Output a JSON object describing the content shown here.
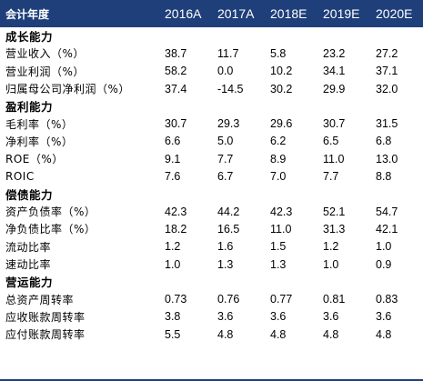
{
  "header": {
    "label": "会计年度",
    "years": [
      "2016A",
      "2017A",
      "2018E",
      "2019E",
      "2020E"
    ]
  },
  "rows": [
    {
      "type": "section",
      "label": "成长能力",
      "values": []
    },
    {
      "type": "data",
      "label": "营业收入（%）",
      "values": [
        "38.7",
        "11.7",
        "5.8",
        "23.2",
        "27.2"
      ]
    },
    {
      "type": "data",
      "label": "营业利润（%）",
      "values": [
        "58.2",
        "0.0",
        "10.2",
        "34.1",
        "37.1"
      ]
    },
    {
      "type": "data",
      "label": "归属母公司净利润（%）",
      "values": [
        "37.4",
        "-14.5",
        "30.2",
        "29.9",
        "32.0"
      ]
    },
    {
      "type": "section",
      "label": "盈利能力",
      "values": []
    },
    {
      "type": "data",
      "label": "毛利率（%）",
      "values": [
        "30.7",
        "29.3",
        "29.6",
        "30.7",
        "31.5"
      ]
    },
    {
      "type": "data",
      "label": "净利率（%）",
      "values": [
        "6.6",
        "5.0",
        "6.2",
        "6.5",
        "6.8"
      ]
    },
    {
      "type": "data",
      "label": "ROE（%）",
      "values": [
        "9.1",
        "7.7",
        "8.9",
        "11.0",
        "13.0"
      ]
    },
    {
      "type": "data",
      "label": "ROIC",
      "values": [
        "7.6",
        "6.7",
        "7.0",
        "7.7",
        "8.8"
      ]
    },
    {
      "type": "section",
      "label": "偿债能力",
      "values": []
    },
    {
      "type": "data",
      "label": "资产负债率（%）",
      "values": [
        "42.3",
        "44.2",
        "42.3",
        "52.1",
        "54.7"
      ]
    },
    {
      "type": "data",
      "label": "净负债比率（%）",
      "values": [
        "18.2",
        "16.5",
        "11.0",
        "31.3",
        "42.1"
      ]
    },
    {
      "type": "data",
      "label": "流动比率",
      "values": [
        "1.2",
        "1.6",
        "1.5",
        "1.2",
        "1.0"
      ]
    },
    {
      "type": "data",
      "label": "速动比率",
      "values": [
        "1.0",
        "1.3",
        "1.3",
        "1.0",
        "0.9"
      ]
    },
    {
      "type": "section",
      "label": "营运能力",
      "values": []
    },
    {
      "type": "data",
      "label": "总资产周转率",
      "values": [
        "0.73",
        "0.76",
        "0.77",
        "0.81",
        "0.83"
      ]
    },
    {
      "type": "data",
      "label": "应收账款周转率",
      "values": [
        "3.8",
        "3.6",
        "3.6",
        "3.6",
        "3.6"
      ]
    },
    {
      "type": "data",
      "label": "应付账款周转率",
      "values": [
        "5.5",
        "4.8",
        "4.8",
        "4.8",
        "4.8"
      ]
    }
  ],
  "colors": {
    "header_bg": "#1f3f7a",
    "header_text": "#ffffff"
  }
}
